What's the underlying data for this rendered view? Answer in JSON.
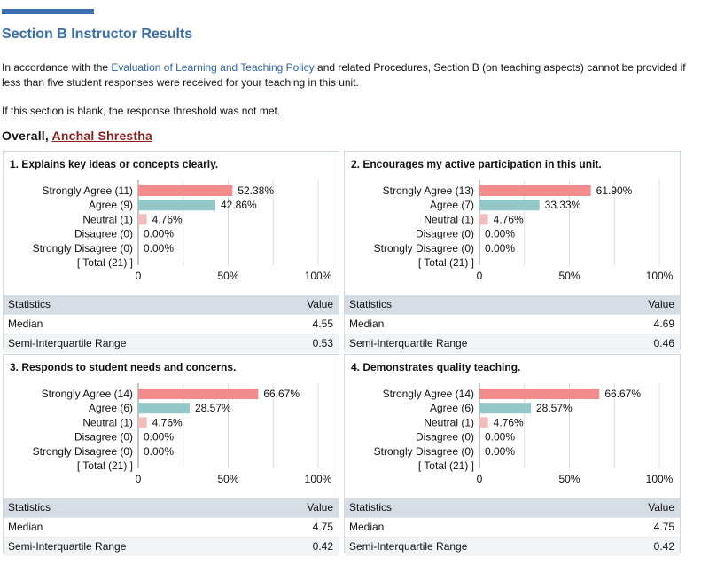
{
  "page": {
    "title": "Section B Instructor Results",
    "intro_before_link": "In accordance with the ",
    "intro_link": "Evaluation of Learning and Teaching Policy",
    "intro_after_link": " and related Procedures, Section B (on teaching aspects) cannot be provided if less than five student responses were received for your teaching in this unit.",
    "blank_note": "If this section is blank, the response threshold was not met.",
    "overall_label": "Overall, ",
    "instructor_name": "Anchal Shrestha"
  },
  "colors": {
    "strongly_agree": "#f28c8c",
    "agree": "#92c8c8",
    "neutral": "#f0bcbc",
    "grid": "#dcdcdc"
  },
  "axis_ticks": [
    "0",
    "50%",
    "100%"
  ],
  "stats_headers": {
    "label": "Statistics",
    "value": "Value"
  },
  "panels": [
    {
      "title": "1. Explains key ideas or concepts clearly.",
      "rows": [
        {
          "label": "Strongly Agree (11)",
          "pct": 52.38,
          "pct_label": "52.38%",
          "color": "#f28c8c"
        },
        {
          "label": "Agree (9)",
          "pct": 42.86,
          "pct_label": "42.86%",
          "color": "#92c8c8"
        },
        {
          "label": "Neutral (1)",
          "pct": 4.76,
          "pct_label": "4.76%",
          "color": "#f0bcbc"
        },
        {
          "label": "Disagree (0)",
          "pct": 0,
          "pct_label": "0.00%",
          "color": "#f0bcbc"
        },
        {
          "label": "Strongly Disagree (0)",
          "pct": 0,
          "pct_label": "0.00%",
          "color": "#f0bcbc"
        }
      ],
      "total_label": "[ Total (21) ]",
      "stats": [
        {
          "label": "Median",
          "value": "4.55"
        },
        {
          "label": "Semi-Interquartile Range",
          "value": "0.53"
        }
      ]
    },
    {
      "title": "2. Encourages my active participation in this unit.",
      "rows": [
        {
          "label": "Strongly Agree (13)",
          "pct": 61.9,
          "pct_label": "61.90%",
          "color": "#f28c8c"
        },
        {
          "label": "Agree (7)",
          "pct": 33.33,
          "pct_label": "33.33%",
          "color": "#92c8c8"
        },
        {
          "label": "Neutral (1)",
          "pct": 4.76,
          "pct_label": "4.76%",
          "color": "#f0bcbc"
        },
        {
          "label": "Disagree (0)",
          "pct": 0,
          "pct_label": "0.00%",
          "color": "#f0bcbc"
        },
        {
          "label": "Strongly Disagree (0)",
          "pct": 0,
          "pct_label": "0.00%",
          "color": "#f0bcbc"
        }
      ],
      "total_label": "[ Total (21) ]",
      "stats": [
        {
          "label": "Median",
          "value": "4.69"
        },
        {
          "label": "Semi-Interquartile Range",
          "value": "0.46"
        }
      ]
    },
    {
      "title": "3. Responds to student needs and concerns.",
      "rows": [
        {
          "label": "Strongly Agree (14)",
          "pct": 66.67,
          "pct_label": "66.67%",
          "color": "#f28c8c"
        },
        {
          "label": "Agree (6)",
          "pct": 28.57,
          "pct_label": "28.57%",
          "color": "#92c8c8"
        },
        {
          "label": "Neutral (1)",
          "pct": 4.76,
          "pct_label": "4.76%",
          "color": "#f0bcbc"
        },
        {
          "label": "Disagree (0)",
          "pct": 0,
          "pct_label": "0.00%",
          "color": "#f0bcbc"
        },
        {
          "label": "Strongly Disagree (0)",
          "pct": 0,
          "pct_label": "0.00%",
          "color": "#f0bcbc"
        }
      ],
      "total_label": "[ Total (21) ]",
      "stats": [
        {
          "label": "Median",
          "value": "4.75"
        },
        {
          "label": "Semi-Interquartile Range",
          "value": "0.42"
        }
      ]
    },
    {
      "title": "4. Demonstrates quality teaching.",
      "rows": [
        {
          "label": "Strongly Agree (14)",
          "pct": 66.67,
          "pct_label": "66.67%",
          "color": "#f28c8c"
        },
        {
          "label": "Agree (6)",
          "pct": 28.57,
          "pct_label": "28.57%",
          "color": "#92c8c8"
        },
        {
          "label": "Neutral (1)",
          "pct": 4.76,
          "pct_label": "4.76%",
          "color": "#f0bcbc"
        },
        {
          "label": "Disagree (0)",
          "pct": 0,
          "pct_label": "0.00%",
          "color": "#f0bcbc"
        },
        {
          "label": "Strongly Disagree (0)",
          "pct": 0,
          "pct_label": "0.00%",
          "color": "#f0bcbc"
        }
      ],
      "total_label": "[ Total (21) ]",
      "stats": [
        {
          "label": "Median",
          "value": "4.75"
        },
        {
          "label": "Semi-Interquartile Range",
          "value": "0.42"
        }
      ]
    }
  ]
}
